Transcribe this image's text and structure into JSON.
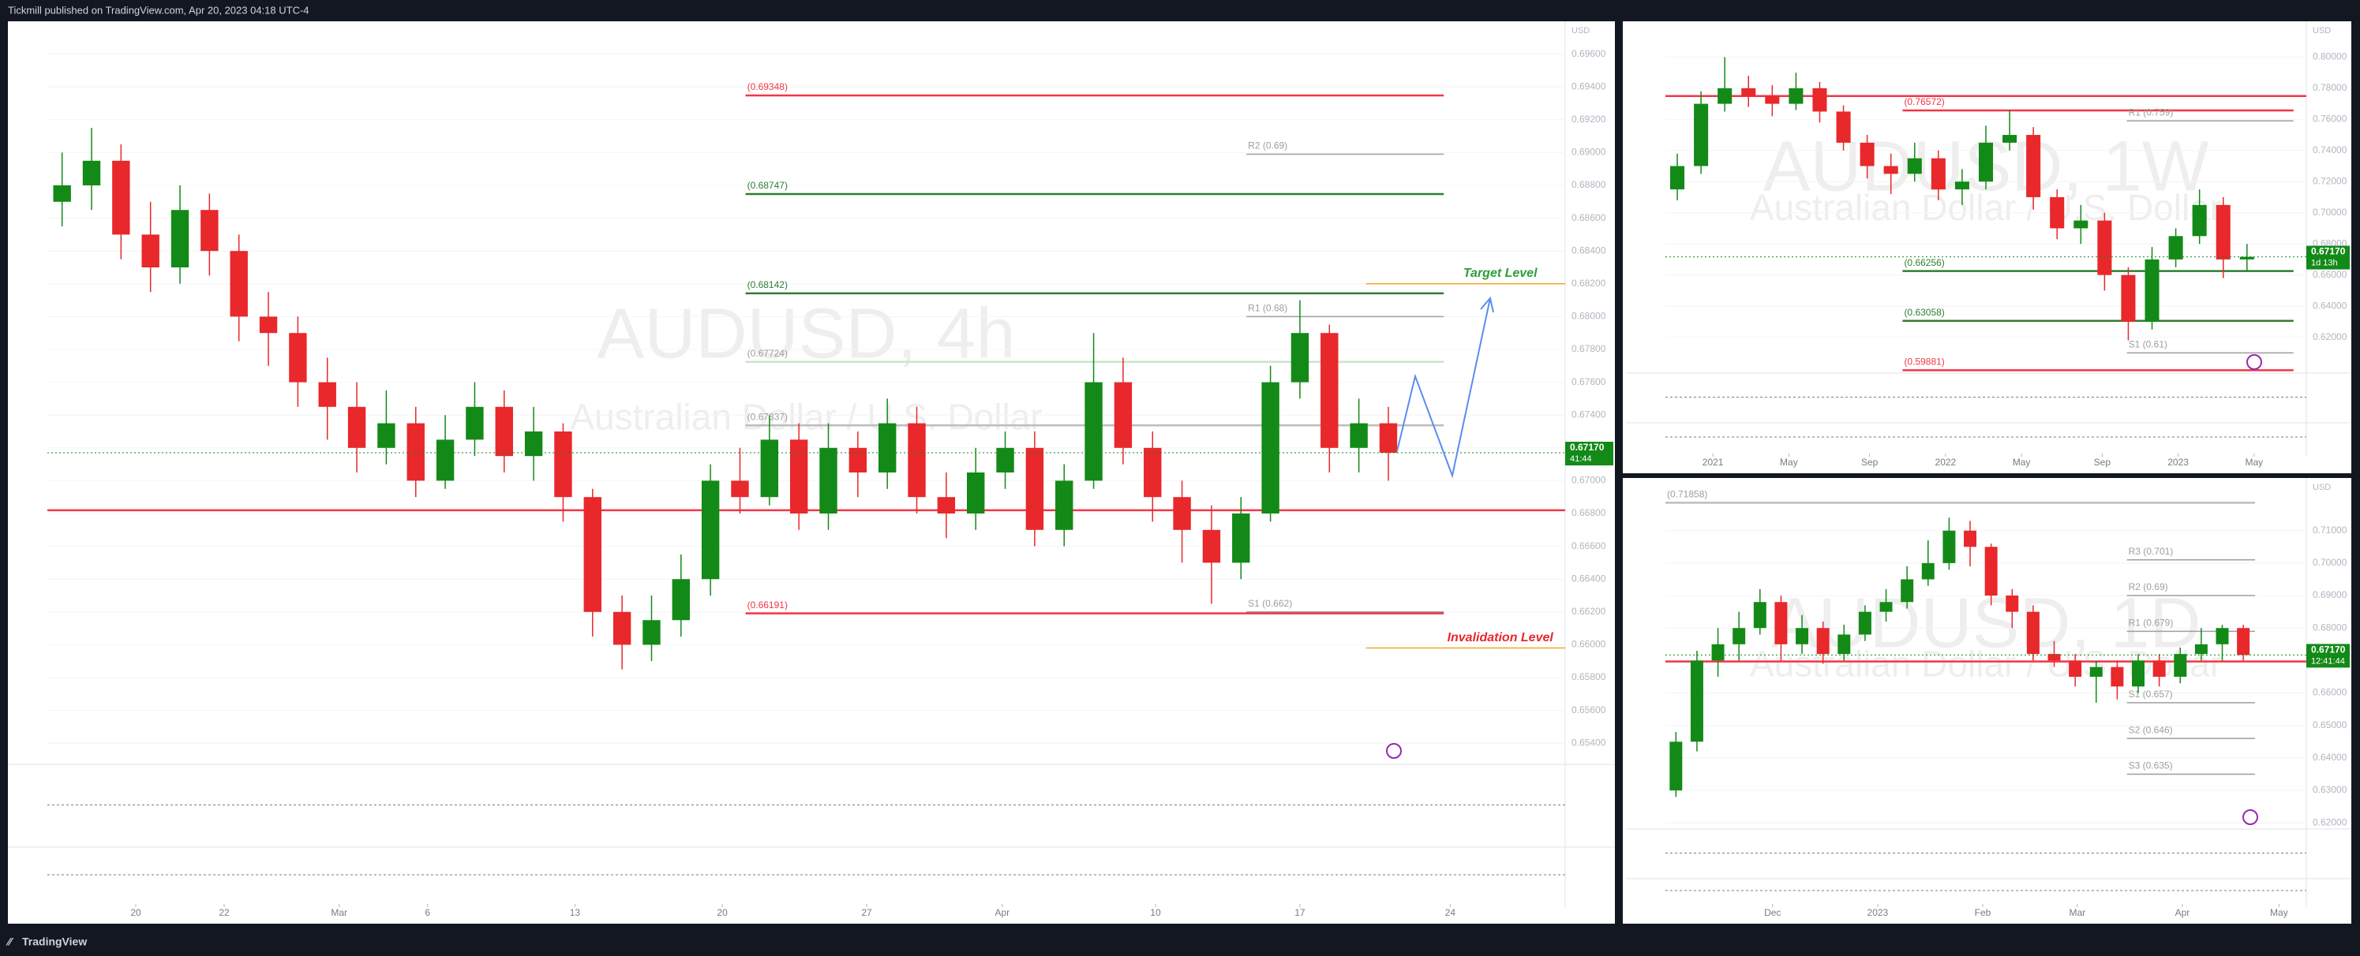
{
  "header": {
    "publisher": "Tickmill published on TradingView.com, Apr 20, 2023 04:18 UTC-4"
  },
  "footer": {
    "brand": "TradingView"
  },
  "chart_data": [
    {
      "type": "candlestick",
      "title": "AUDUSD, 4h",
      "subtitle": "Australian Dollar / U.S. Dollar",
      "currency": "USD",
      "up_color": "#138a17",
      "down_color": "#e8282b",
      "grid": true,
      "open": [
        0.687,
        0.688,
        0.6895,
        0.685,
        0.683,
        0.6865,
        0.684,
        0.68,
        0.679,
        0.676,
        0.6745,
        0.672,
        0.6735,
        0.67,
        0.6725,
        0.6745,
        0.6715,
        0.673,
        0.669,
        0.662,
        0.66,
        0.6615,
        0.664,
        0.67,
        0.669,
        0.6725,
        0.668,
        0.672,
        0.6705,
        0.6735,
        0.669,
        0.668,
        0.6705,
        0.672,
        0.667,
        0.67,
        0.676,
        0.672,
        0.669,
        0.667,
        0.665,
        0.668,
        0.676,
        0.679,
        0.672,
        0.6735
      ],
      "high": [
        0.69,
        0.6915,
        0.6905,
        0.687,
        0.688,
        0.6875,
        0.685,
        0.6815,
        0.68,
        0.6775,
        0.676,
        0.6755,
        0.6745,
        0.674,
        0.676,
        0.6755,
        0.6745,
        0.6735,
        0.6695,
        0.663,
        0.663,
        0.6655,
        0.671,
        0.672,
        0.674,
        0.6735,
        0.6735,
        0.673,
        0.675,
        0.6745,
        0.6705,
        0.672,
        0.673,
        0.673,
        0.671,
        0.679,
        0.6775,
        0.673,
        0.67,
        0.6685,
        0.669,
        0.677,
        0.681,
        0.6795,
        0.675,
        0.6745
      ],
      "low": [
        0.6855,
        0.6865,
        0.6835,
        0.6815,
        0.682,
        0.6825,
        0.6785,
        0.677,
        0.6745,
        0.6725,
        0.6705,
        0.671,
        0.669,
        0.6695,
        0.6715,
        0.6705,
        0.67,
        0.6675,
        0.6605,
        0.6585,
        0.659,
        0.6605,
        0.663,
        0.668,
        0.6685,
        0.667,
        0.667,
        0.669,
        0.6695,
        0.668,
        0.6665,
        0.667,
        0.6695,
        0.666,
        0.666,
        0.6695,
        0.671,
        0.6675,
        0.665,
        0.6625,
        0.664,
        0.6675,
        0.675,
        0.6705,
        0.6705,
        0.67
      ],
      "close": [
        0.688,
        0.6895,
        0.685,
        0.683,
        0.6865,
        0.684,
        0.68,
        0.679,
        0.676,
        0.6745,
        0.672,
        0.6735,
        0.67,
        0.6725,
        0.6745,
        0.6715,
        0.673,
        0.669,
        0.662,
        0.66,
        0.6615,
        0.664,
        0.67,
        0.669,
        0.6725,
        0.668,
        0.672,
        0.6705,
        0.6735,
        0.669,
        0.668,
        0.6705,
        0.672,
        0.667,
        0.67,
        0.676,
        0.672,
        0.669,
        0.667,
        0.665,
        0.668,
        0.676,
        0.679,
        0.672,
        0.6735,
        0.6717
      ],
      "xlim": [
        -0.5,
        51
      ],
      "xticks": [
        {
          "value": 2.5,
          "label": "20"
        },
        {
          "value": 5.5,
          "label": "22"
        },
        {
          "value": 9.4,
          "label": "Mar"
        },
        {
          "value": 12.4,
          "label": "6"
        },
        {
          "value": 17.4,
          "label": "13"
        },
        {
          "value": 22.4,
          "label": "20"
        },
        {
          "value": 27.3,
          "label": "27"
        },
        {
          "value": 31.9,
          "label": "Apr"
        },
        {
          "value": 37.1,
          "label": "10"
        },
        {
          "value": 42,
          "label": "17"
        },
        {
          "value": 47.1,
          "label": "24"
        }
      ],
      "ylim": [
        0.653,
        0.698
      ],
      "yticks": [
        {
          "value": 0.654,
          "label": "0.65400"
        },
        {
          "value": 0.656,
          "label": "0.65600"
        },
        {
          "value": 0.658,
          "label": "0.65800"
        },
        {
          "value": 0.66,
          "label": "0.66000"
        },
        {
          "value": 0.662,
          "label": "0.66200"
        },
        {
          "value": 0.664,
          "label": "0.66400"
        },
        {
          "value": 0.666,
          "label": "0.66600"
        },
        {
          "value": 0.668,
          "label": "0.66800"
        },
        {
          "value": 0.67,
          "label": "0.67000"
        },
        {
          "value": 0.672,
          "label": "0.67200"
        },
        {
          "value": 0.674,
          "label": "0.67400"
        },
        {
          "value": 0.676,
          "label": "0.67600"
        },
        {
          "value": 0.678,
          "label": "0.67800"
        },
        {
          "value": 0.68,
          "label": "0.68000"
        },
        {
          "value": 0.682,
          "label": "0.68200"
        },
        {
          "value": 0.684,
          "label": "0.68400"
        },
        {
          "value": 0.686,
          "label": "0.68600"
        },
        {
          "value": 0.688,
          "label": "0.68800"
        },
        {
          "value": 0.69,
          "label": "0.69000"
        },
        {
          "value": 0.692,
          "label": "0.69200"
        },
        {
          "value": 0.694,
          "label": "0.69400"
        },
        {
          "value": 0.696,
          "label": "0.69600"
        }
      ],
      "levels": [
        {
          "label": "(0.69348)",
          "value": 0.69348,
          "color": "#f23645",
          "kind": "fib"
        },
        {
          "label": "R2 (0.69)",
          "value": 0.6899,
          "color": "#9e9e9e",
          "kind": "pivot"
        },
        {
          "label": "(0.68747)",
          "value": 0.68747,
          "color": "#2e7d32",
          "kind": "fib"
        },
        {
          "label": "(0.68142)",
          "value": 0.68142,
          "color": "#2e7d32",
          "kind": "fib"
        },
        {
          "label": "R1 (0.68)",
          "value": 0.68,
          "color": "#9e9e9e",
          "kind": "pivot"
        },
        {
          "label": "(0.67724)",
          "value": 0.67724,
          "color": "#c8e6c9",
          "kind": "fib"
        },
        {
          "label": "(0.67337)",
          "value": 0.67337,
          "color": "#bdbdbd",
          "kind": "fib"
        },
        {
          "label": "S1 (0.662)",
          "value": 0.662,
          "color": "#9e9e9e",
          "kind": "pivot"
        },
        {
          "label": "(0.66191)",
          "value": 0.66191,
          "color": "#f23645",
          "kind": "fib"
        }
      ],
      "key_level": 0.6682,
      "key_level_color": "#f23645",
      "annotations": [
        {
          "text": "Target Level",
          "value": 0.682,
          "color": "#2e9d3a",
          "line_color": "#f5a623"
        },
        {
          "text": "Invalidation Level",
          "value": 0.6598,
          "color": "#e8282b",
          "line_color": "#f5a623"
        }
      ],
      "last_price": {
        "value": 0.6717,
        "label": "0.67170"
      },
      "countdown": "41:44"
    },
    {
      "type": "candlestick",
      "title": "AUDUSD, 1W",
      "subtitle": "Australian Dollar / U.S. Dollar",
      "currency": "USD",
      "up_color": "#138a17",
      "down_color": "#e8282b",
      "grid": true,
      "open": [
        0.715,
        0.73,
        0.77,
        0.78,
        0.775,
        0.77,
        0.78,
        0.765,
        0.745,
        0.73,
        0.725,
        0.735,
        0.715,
        0.72,
        0.745,
        0.75,
        0.71,
        0.69,
        0.695,
        0.66,
        0.63,
        0.67,
        0.685,
        0.705,
        0.67
      ],
      "high": [
        0.738,
        0.778,
        0.8,
        0.788,
        0.782,
        0.79,
        0.784,
        0.769,
        0.75,
        0.738,
        0.745,
        0.74,
        0.728,
        0.756,
        0.766,
        0.755,
        0.715,
        0.705,
        0.7,
        0.665,
        0.678,
        0.69,
        0.715,
        0.71,
        0.68
      ],
      "low": [
        0.708,
        0.725,
        0.765,
        0.768,
        0.762,
        0.766,
        0.758,
        0.74,
        0.722,
        0.712,
        0.72,
        0.708,
        0.705,
        0.715,
        0.74,
        0.702,
        0.683,
        0.68,
        0.65,
        0.618,
        0.625,
        0.665,
        0.68,
        0.658,
        0.662
      ],
      "close": [
        0.73,
        0.77,
        0.78,
        0.775,
        0.77,
        0.78,
        0.765,
        0.745,
        0.73,
        0.725,
        0.735,
        0.715,
        0.72,
        0.745,
        0.75,
        0.71,
        0.69,
        0.695,
        0.66,
        0.63,
        0.67,
        0.685,
        0.705,
        0.67,
        0.6717
      ],
      "xlim": [
        -0.5,
        26.5
      ],
      "xticks": [
        {
          "value": 1.5,
          "label": "2021"
        },
        {
          "value": 4.7,
          "label": "May"
        },
        {
          "value": 8.1,
          "label": "Sep"
        },
        {
          "value": 11.3,
          "label": "2022"
        },
        {
          "value": 14.5,
          "label": "May"
        },
        {
          "value": 17.9,
          "label": "Sep"
        },
        {
          "value": 21.1,
          "label": "2023"
        },
        {
          "value": 24.3,
          "label": "May"
        }
      ],
      "ylim": [
        0.598,
        0.823
      ],
      "yticks": [
        {
          "value": 0.62,
          "label": "0.62000"
        },
        {
          "value": 0.64,
          "label": "0.64000"
        },
        {
          "value": 0.66,
          "label": "0.66000"
        },
        {
          "value": 0.68,
          "label": "0.68000"
        },
        {
          "value": 0.7,
          "label": "0.70000"
        },
        {
          "value": 0.72,
          "label": "0.72000"
        },
        {
          "value": 0.74,
          "label": "0.74000"
        },
        {
          "value": 0.76,
          "label": "0.76000"
        },
        {
          "value": 0.78,
          "label": "0.78000"
        },
        {
          "value": 0.8,
          "label": "0.80000"
        }
      ],
      "levels": [
        {
          "label": "(0.76572)",
          "value": 0.76572,
          "color": "#f23645",
          "kind": "fib"
        },
        {
          "label": "R1 (0.759)",
          "value": 0.759,
          "color": "#9e9e9e",
          "kind": "pivot"
        },
        {
          "label": "(0.66256)",
          "value": 0.66256,
          "color": "#2e7d32",
          "kind": "fib"
        },
        {
          "label": "(0.63058)",
          "value": 0.63058,
          "color": "#2e7d32",
          "kind": "fib"
        },
        {
          "label": "S1 (0.61)",
          "value": 0.61,
          "color": "#9e9e9e",
          "kind": "pivot"
        },
        {
          "label": "(0.59881)",
          "value": 0.59881,
          "color": "#f23645",
          "kind": "fib"
        }
      ],
      "key_level": 0.775,
      "key_level_color": "#f23645",
      "last_price": {
        "value": 0.6717,
        "label": "0.67170"
      },
      "countdown": "1d 13h"
    },
    {
      "type": "candlestick",
      "title": "AUDUSD, 1D",
      "subtitle": "Australian Dollar / U.S. Dollar",
      "currency": "USD",
      "up_color": "#138a17",
      "down_color": "#e8282b",
      "grid": true,
      "open": [
        0.63,
        0.645,
        0.67,
        0.675,
        0.68,
        0.688,
        0.675,
        0.68,
        0.672,
        0.678,
        0.685,
        0.688,
        0.695,
        0.7,
        0.71,
        0.705,
        0.69,
        0.685,
        0.672,
        0.67,
        0.665,
        0.668,
        0.662,
        0.67,
        0.665,
        0.672,
        0.675,
        0.68
      ],
      "high": [
        0.648,
        0.673,
        0.68,
        0.685,
        0.692,
        0.69,
        0.684,
        0.682,
        0.681,
        0.687,
        0.692,
        0.699,
        0.707,
        0.714,
        0.713,
        0.706,
        0.692,
        0.687,
        0.676,
        0.672,
        0.67,
        0.67,
        0.672,
        0.672,
        0.674,
        0.68,
        0.681,
        0.681
      ],
      "low": [
        0.628,
        0.642,
        0.665,
        0.67,
        0.678,
        0.67,
        0.672,
        0.669,
        0.67,
        0.676,
        0.682,
        0.686,
        0.693,
        0.698,
        0.699,
        0.687,
        0.68,
        0.67,
        0.668,
        0.662,
        0.657,
        0.658,
        0.66,
        0.662,
        0.663,
        0.67,
        0.67,
        0.67
      ],
      "close": [
        0.645,
        0.67,
        0.675,
        0.68,
        0.688,
        0.675,
        0.68,
        0.672,
        0.678,
        0.685,
        0.688,
        0.695,
        0.7,
        0.71,
        0.705,
        0.69,
        0.685,
        0.672,
        0.67,
        0.665,
        0.668,
        0.662,
        0.67,
        0.665,
        0.672,
        0.675,
        0.68,
        0.6717
      ],
      "xlim": [
        -0.5,
        30
      ],
      "xticks": [
        {
          "value": 4.6,
          "label": "Dec"
        },
        {
          "value": 9.6,
          "label": "2023"
        },
        {
          "value": 14.6,
          "label": "Feb"
        },
        {
          "value": 19.1,
          "label": "Mar"
        },
        {
          "value": 24.1,
          "label": "Apr"
        },
        {
          "value": 28.7,
          "label": "May"
        }
      ],
      "ylim": [
        0.6186,
        0.7262
      ],
      "yticks": [
        {
          "value": 0.62,
          "label": "0.62000"
        },
        {
          "value": 0.63,
          "label": "0.63000"
        },
        {
          "value": 0.64,
          "label": "0.64000"
        },
        {
          "value": 0.65,
          "label": "0.65000"
        },
        {
          "value": 0.66,
          "label": "0.66000"
        },
        {
          "value": 0.67,
          "label": "0.67000"
        },
        {
          "value": 0.68,
          "label": "0.68000"
        },
        {
          "value": 0.69,
          "label": "0.69000"
        },
        {
          "value": 0.7,
          "label": "0.70000"
        },
        {
          "value": 0.71,
          "label": "0.71000"
        }
      ],
      "levels": [
        {
          "label": "(0.71858)",
          "value": 0.71858,
          "color": "#bdbdbd",
          "kind": "fib"
        },
        {
          "label": "R3 (0.701)",
          "value": 0.701,
          "color": "#9e9e9e",
          "kind": "pivot"
        },
        {
          "label": "R2 (0.69)",
          "value": 0.69,
          "color": "#9e9e9e",
          "kind": "pivot"
        },
        {
          "label": "R1 (0.679)",
          "value": 0.679,
          "color": "#9e9e9e",
          "kind": "pivot"
        },
        {
          "label": "S1 (0.657)",
          "value": 0.657,
          "color": "#9e9e9e",
          "kind": "pivot"
        },
        {
          "label": "S2 (0.646)",
          "value": 0.646,
          "color": "#9e9e9e",
          "kind": "pivot"
        },
        {
          "label": "S3 (0.635)",
          "value": 0.635,
          "color": "#9e9e9e",
          "kind": "pivot"
        }
      ],
      "key_level": 0.6697,
      "key_level_color": "#f23645",
      "last_price": {
        "value": 0.6717,
        "label": "0.67170"
      },
      "countdown": "12:41:44"
    }
  ]
}
